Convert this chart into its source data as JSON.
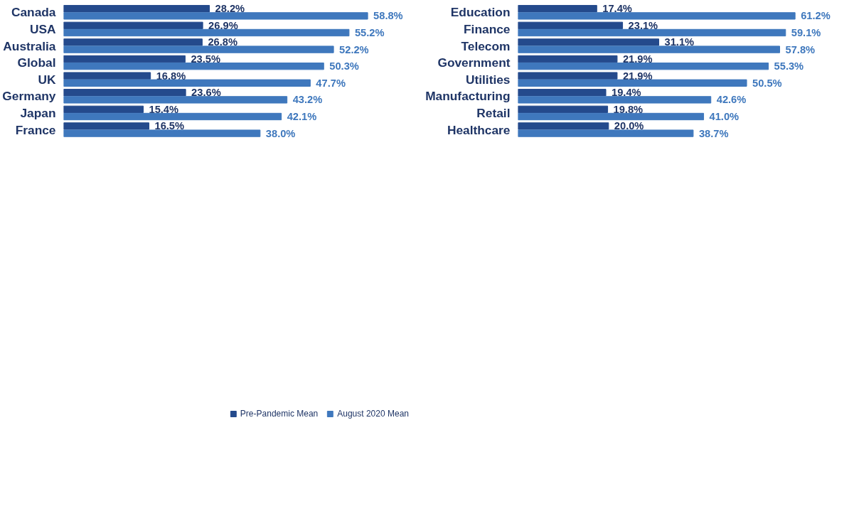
{
  "chart_data": [
    {
      "type": "bar",
      "orientation": "horizontal",
      "categories": [
        "Canada",
        "USA",
        "Australia",
        "Global",
        "UK",
        "Germany",
        "Japan",
        "France"
      ],
      "legend": "bottom right",
      "series": [
        {
          "name": "Pre-Pandemic Mean",
          "color": "#244a8c",
          "values": [
            28.2,
            26.9,
            26.8,
            23.5,
            16.8,
            23.6,
            15.4,
            16.5
          ],
          "value_labels": [
            "28.2%",
            "26.9%",
            "26.8%",
            "23.5%",
            "16.8%",
            "23.6%",
            "15.4%",
            "16.5%"
          ]
        },
        {
          "name": "August 2020 Mean",
          "color": "#3f78bd",
          "values": [
            58.8,
            55.2,
            52.2,
            50.3,
            47.7,
            43.2,
            42.1,
            38.0
          ],
          "value_labels": [
            "58.8%",
            "55.2%",
            "52.2%",
            "50.3%",
            "47.7%",
            "43.2%",
            "42.1%",
            "38.0%"
          ]
        }
      ]
    },
    {
      "type": "bar",
      "orientation": "horizontal",
      "categories": [
        "Education",
        "Finance",
        "Telecom",
        "Government",
        "Utilities",
        "Manufacturing",
        "Retail",
        "Healthcare"
      ],
      "series": [
        {
          "color": "#244a8c",
          "values": [
            17.4,
            23.1,
            31.1,
            21.9,
            21.9,
            19.4,
            19.8,
            20.0
          ],
          "value_labels": [
            "17.4%",
            "23.1%",
            "31.1%",
            "21.9%",
            "21.9%",
            "19.4%",
            "19.8%",
            "20.0%"
          ]
        },
        {
          "color": "#3f78bd",
          "values": [
            61.2,
            59.1,
            57.8,
            55.3,
            50.5,
            42.6,
            41.0,
            38.7
          ],
          "value_labels": [
            "61.2%",
            "59.1%",
            "57.8%",
            "55.3%",
            "50.5%",
            "42.6%",
            "41.0%",
            "38.7%"
          ]
        }
      ]
    }
  ]
}
